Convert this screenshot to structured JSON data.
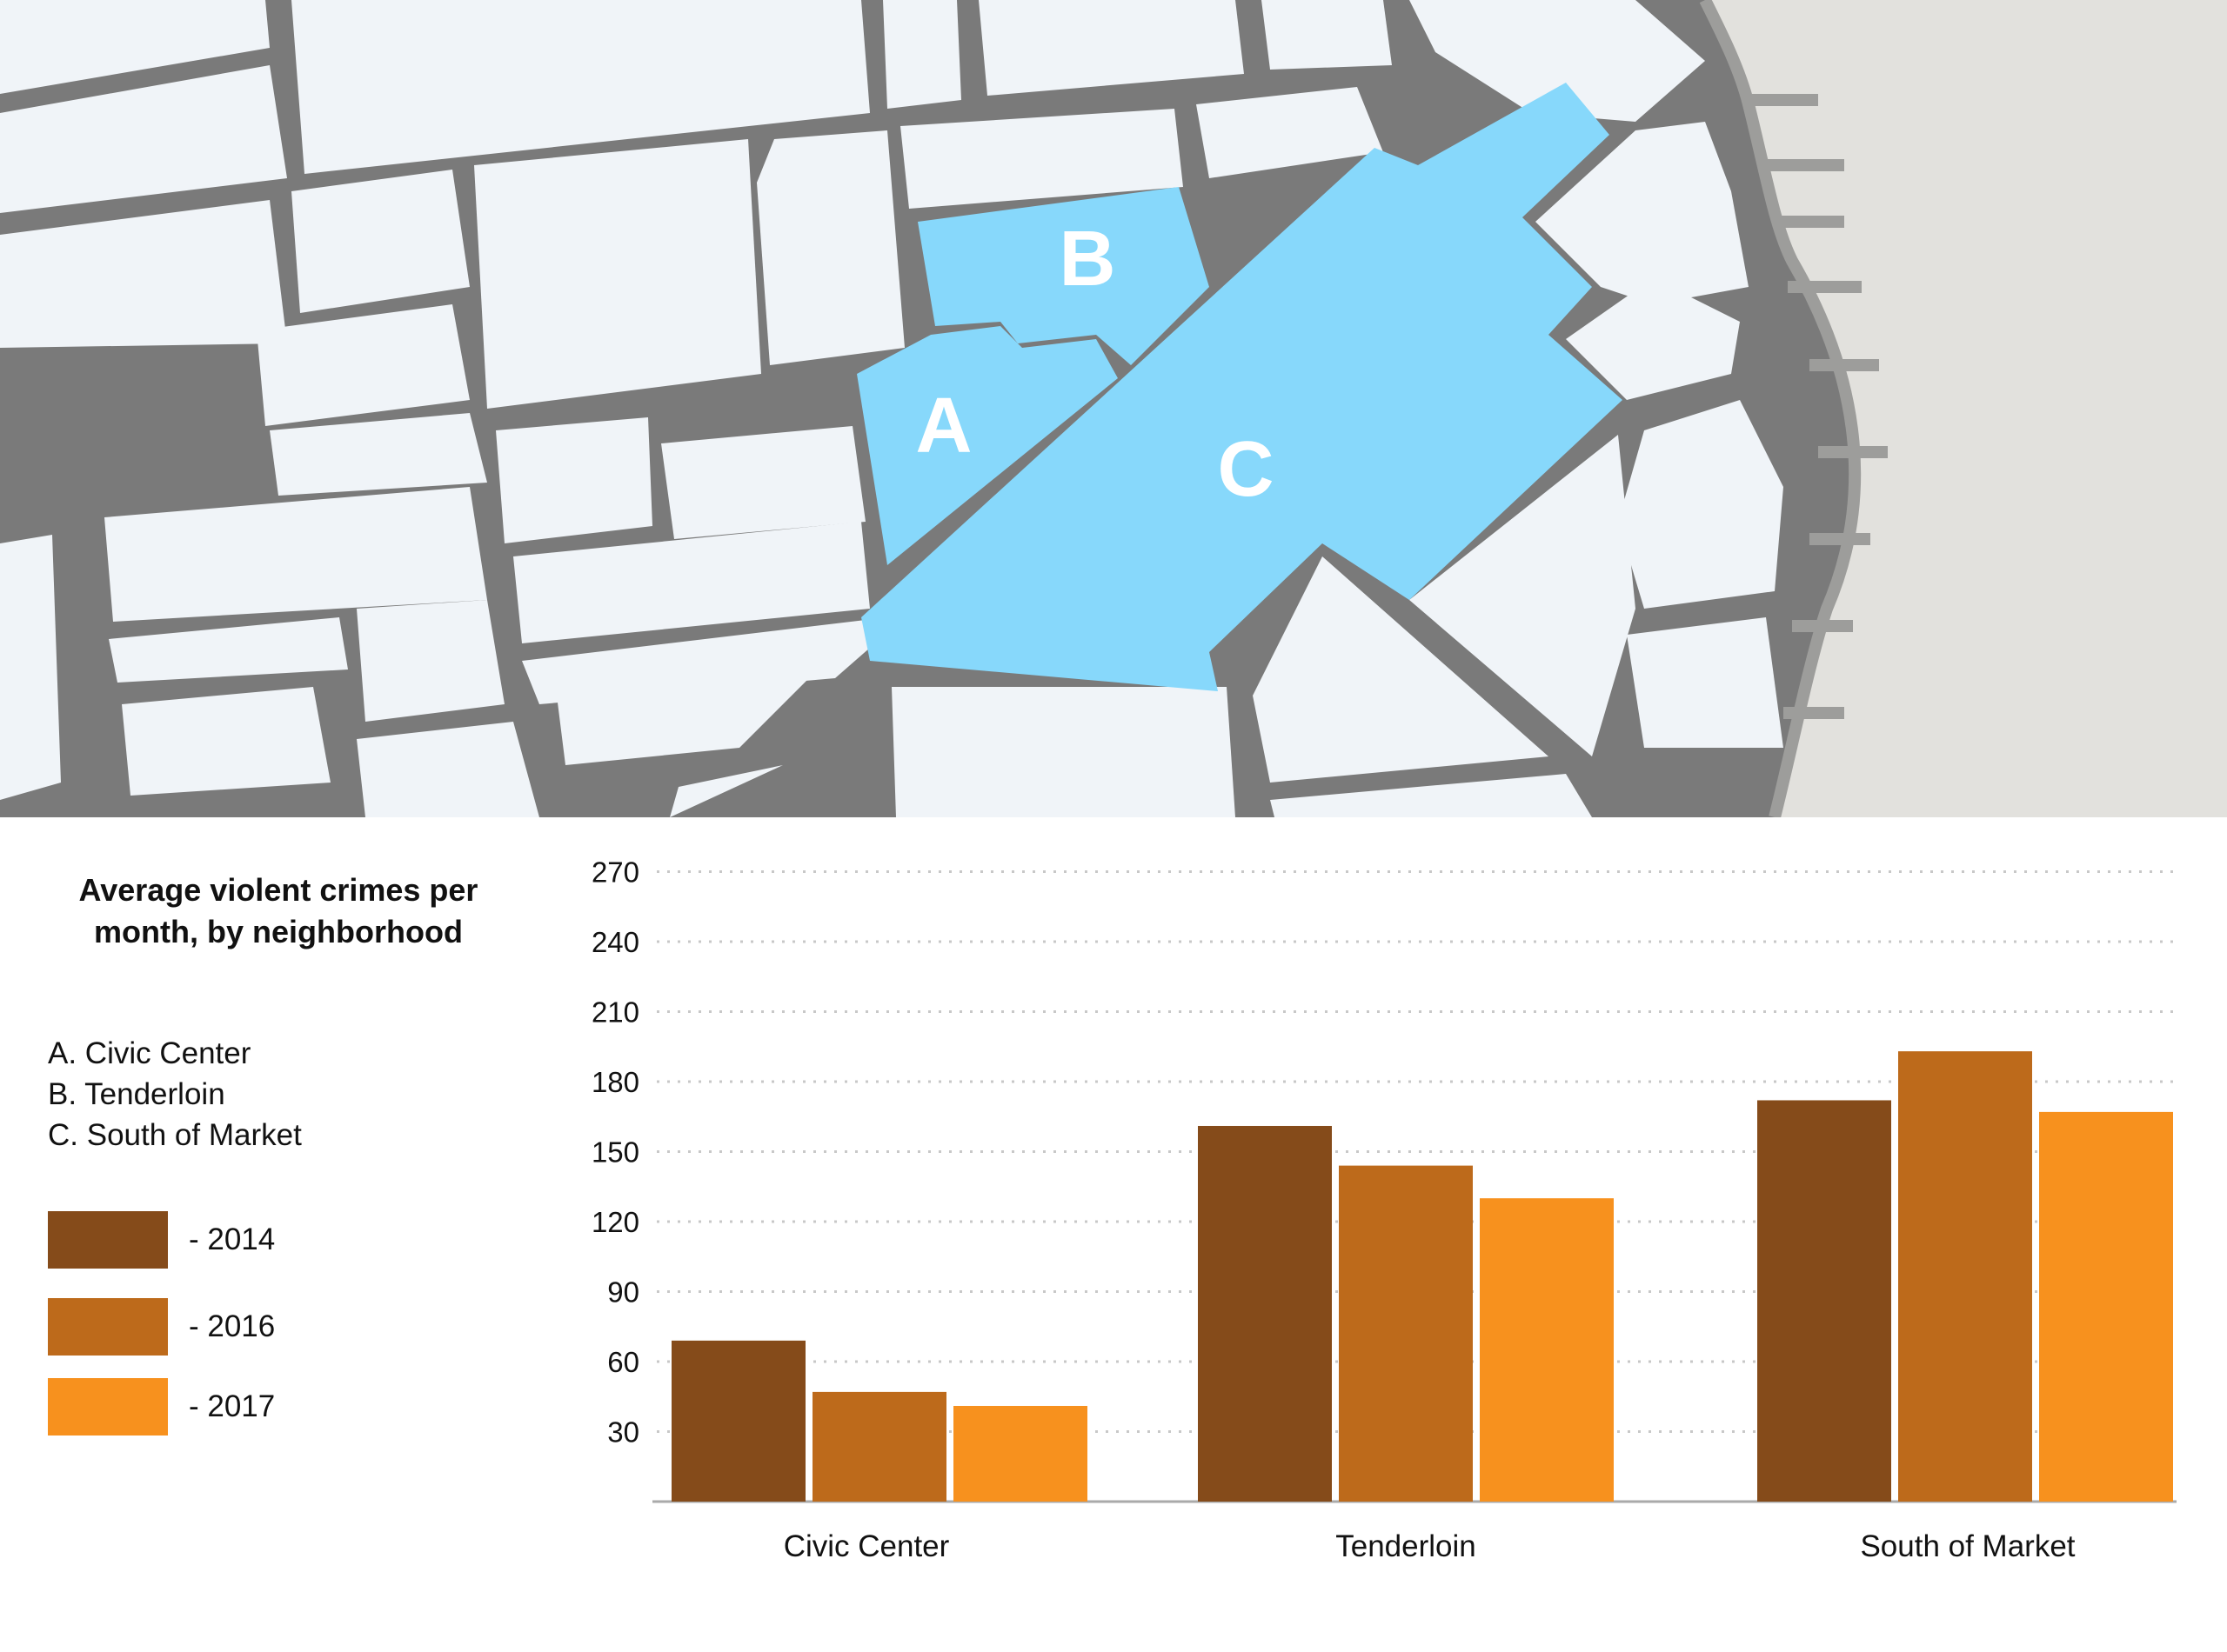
{
  "map": {
    "letters": {
      "a": "A",
      "b": "B",
      "c": "C"
    },
    "colors": {
      "block_fill": "#f0f4f8",
      "street": "#7a7a7a",
      "highlight": "#87d8fb",
      "bay": "#e2e1dd",
      "shore": "#9d9d9b"
    }
  },
  "title": "Average violent crimes per month, by neighborhood",
  "neighborhoods": [
    "A. Civic Center",
    "B. Tenderloin",
    "C. South of Market"
  ],
  "legend": [
    {
      "label": "- 2014",
      "color": "#854b1a"
    },
    {
      "label": "- 2016",
      "color": "#bd6a1b"
    },
    {
      "label": "- 2017",
      "color": "#f7911e"
    }
  ],
  "chart_data": {
    "type": "bar",
    "categories": [
      "Civic Center",
      "Tenderloin",
      "South of Market"
    ],
    "series": [
      {
        "name": "2014",
        "color": "#854b1a",
        "values": [
          69,
          161,
          172
        ]
      },
      {
        "name": "2016",
        "color": "#bd6a1b",
        "values": [
          47,
          144,
          193
        ]
      },
      {
        "name": "2017",
        "color": "#f7911e",
        "values": [
          41,
          130,
          167
        ]
      }
    ],
    "yticks": [
      30,
      60,
      90,
      120,
      150,
      180,
      210,
      240,
      270
    ],
    "ylim": [
      0,
      270
    ],
    "grid": true
  }
}
